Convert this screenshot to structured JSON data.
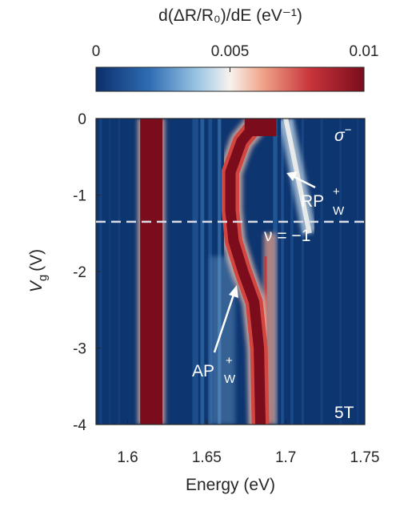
{
  "chart_data": {
    "type": "heatmap",
    "title": "",
    "xlabel": "Energy (eV)",
    "ylabel_main": "V",
    "ylabel_sub": "g",
    "ylabel_unit": "(V)",
    "xlim": [
      1.58,
      1.75
    ],
    "ylim": [
      -4,
      0
    ],
    "x_ticks": [
      1.6,
      1.65,
      1.7,
      1.75
    ],
    "x_tick_labels": [
      "1.6",
      "1.65",
      "1.7",
      "1.75"
    ],
    "y_ticks": [
      0,
      -1,
      -2,
      -3,
      -4
    ],
    "y_tick_labels": [
      "0",
      "-1",
      "-2",
      "-3",
      "-4"
    ],
    "colorbar": {
      "label": "d(ΔR/R₀)/dE (eV⁻¹)",
      "range": [
        0,
        0.01
      ],
      "ticks": [
        0,
        0.005,
        0.01
      ],
      "tick_labels": [
        "0",
        "0.005",
        "0.01"
      ],
      "colors": [
        "#0b2f6b",
        "#2f6db3",
        "#9cc6e4",
        "#f7f3ee",
        "#f0a58a",
        "#c8343a",
        "#7a0c1c"
      ]
    },
    "features": [
      {
        "name": "bright-band",
        "kind": "vertical",
        "energy": 1.615,
        "vg_range": [
          -4,
          0
        ],
        "value": 0.01
      },
      {
        "name": "AP-W+",
        "kind": "curve",
        "points": [
          [
            1.684,
            0
          ],
          [
            1.672,
            -0.3
          ],
          [
            1.665,
            -0.7
          ],
          [
            1.665,
            -1.2
          ],
          [
            1.667,
            -1.6
          ],
          [
            1.673,
            -2.0
          ],
          [
            1.68,
            -2.4
          ],
          [
            1.683,
            -3.0
          ],
          [
            1.684,
            -4
          ]
        ],
        "value": 0.009
      },
      {
        "name": "RP-W+",
        "kind": "curve",
        "points": [
          [
            1.7,
            0
          ],
          [
            1.705,
            -0.5
          ],
          [
            1.71,
            -1.0
          ],
          [
            1.715,
            -1.5
          ]
        ],
        "value": 0.0055
      }
    ],
    "reference_line": {
      "vg": -1.35,
      "style": "dashed"
    },
    "annotations": {
      "sigma": "σ",
      "sigma_sup": "−",
      "field": "5T",
      "nu": "ν = −1",
      "rp_main": "RP",
      "rp_sup": "+",
      "rp_sub": "W",
      "ap_main": "AP",
      "ap_sup": "+",
      "ap_sub": "W"
    }
  }
}
